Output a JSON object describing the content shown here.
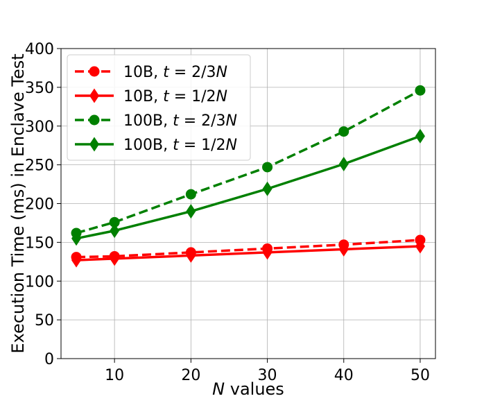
{
  "chart_data": {
    "type": "line",
    "xlabel_var": "N",
    "xlabel_rest": " values",
    "ylabel": "Execution Time (ms) in Enclave Test",
    "xlim": [
      3,
      52
    ],
    "ylim": [
      0,
      400
    ],
    "xticks": [
      10,
      20,
      30,
      40,
      50
    ],
    "yticks": [
      0,
      50,
      100,
      150,
      200,
      250,
      300,
      350,
      400
    ],
    "grid": true,
    "legend_position": "top-left",
    "x": [
      5,
      10,
      20,
      30,
      40,
      50
    ],
    "series": [
      {
        "name": "10B, t = 2/3N",
        "legend": {
          "prefix": "10B, ",
          "var": "t",
          "eq": " = 2/3",
          "n": "N"
        },
        "values": [
          131,
          132,
          137,
          142,
          147,
          153
        ],
        "color": "#ff0000",
        "dash": "dashed",
        "marker": "circle"
      },
      {
        "name": "10B, t = 1/2N",
        "legend": {
          "prefix": "10B, ",
          "var": "t",
          "eq": " = 1/2",
          "n": "N"
        },
        "values": [
          127,
          129,
          133,
          137,
          141,
          145
        ],
        "color": "#ff0000",
        "dash": "solid",
        "marker": "diamond"
      },
      {
        "name": "100B, t = 2/3N",
        "legend": {
          "prefix": "100B, ",
          "var": "t",
          "eq": " = 2/3",
          "n": "N"
        },
        "values": [
          162,
          176,
          212,
          247,
          293,
          346
        ],
        "color": "#008000",
        "dash": "dashed",
        "marker": "circle"
      },
      {
        "name": "100B, t = 1/2N",
        "legend": {
          "prefix": "100B, ",
          "var": "t",
          "eq": " = 1/2",
          "n": "N"
        },
        "values": [
          155,
          165,
          190,
          219,
          251,
          287
        ],
        "color": "#008000",
        "dash": "solid",
        "marker": "diamond"
      }
    ]
  }
}
